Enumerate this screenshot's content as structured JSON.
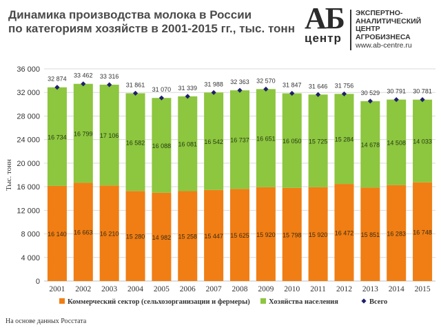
{
  "title": {
    "line1": "Динамика производства молока в России",
    "line2": "по категориям хозяйств в 2001-2015 гг., тыс. тонн"
  },
  "logo": {
    "mark": "АБ",
    "centre": "центр",
    "line1": "ЭКСПЕРТНО-",
    "line2": "АНАЛИТИЧЕСКИЙ",
    "line3": "ЦЕНТР",
    "line4": "АГРОБИЗНЕСА",
    "url": "www.ab-centre.ru"
  },
  "note": "На основе данных Росстата",
  "colors": {
    "commercial": "#F07E14",
    "households": "#8DC63F",
    "total": "#1F1F6B",
    "grid": "#D9D9D9",
    "axis_text": "#333333"
  },
  "chart_data": {
    "type": "bar",
    "stacked": true,
    "categories": [
      "2001",
      "2002",
      "2003",
      "2004",
      "2005",
      "2006",
      "2007",
      "2008",
      "2009",
      "2010",
      "2011",
      "2012",
      "2013",
      "2014",
      "2015"
    ],
    "series": [
      {
        "name": "Коммерческий сектор (сельхозорганизации и фермеры)",
        "values": [
          16140,
          16663,
          16210,
          15280,
          14982,
          15258,
          15447,
          15625,
          15920,
          15798,
          15920,
          16472,
          15851,
          16283,
          16748
        ],
        "labels": [
          "16 140",
          "16 663",
          "16 210",
          "15 280",
          "14 982",
          "15 258",
          "15 447",
          "15 625",
          "15 920",
          "15 798",
          "15 920",
          "16 472",
          "15 851",
          "16 283",
          "16 748"
        ]
      },
      {
        "name": "Хозяйства населения",
        "values": [
          16734,
          16799,
          17106,
          16582,
          16088,
          16081,
          16542,
          16737,
          16651,
          16050,
          15725,
          15284,
          14678,
          14508,
          14033
        ],
        "labels": [
          "16 734",
          "16 799",
          "17 106",
          "16 582",
          "16 088",
          "16 081",
          "16 542",
          "16 737",
          "16 651",
          "16 050",
          "15 725",
          "15 284",
          "14 678",
          "14 508",
          "14 033"
        ]
      },
      {
        "name": "Всего",
        "type": "scatter",
        "values": [
          32874,
          33462,
          33316,
          31861,
          31070,
          31339,
          31988,
          32363,
          32570,
          31847,
          31646,
          31756,
          30529,
          30791,
          30781
        ],
        "labels": [
          "32 874",
          "33 462",
          "33 316",
          "31 861",
          "31 070",
          "31 339",
          "31 988",
          "32 363",
          "32 570",
          "31 847",
          "31 646",
          "31 756",
          "30 529",
          "30 791",
          "30 781"
        ]
      }
    ],
    "ylabel": "Тыс. тонн",
    "ylim": [
      0,
      36000
    ],
    "yticks": [
      0,
      4000,
      8000,
      12000,
      16000,
      20000,
      24000,
      28000,
      32000,
      36000
    ],
    "ytick_labels": [
      "0",
      "4 000",
      "8 000",
      "12 000",
      "16 000",
      "20 000",
      "24 000",
      "28 000",
      "32 000",
      "36 000"
    ],
    "grid": true,
    "legend": "bottom"
  }
}
